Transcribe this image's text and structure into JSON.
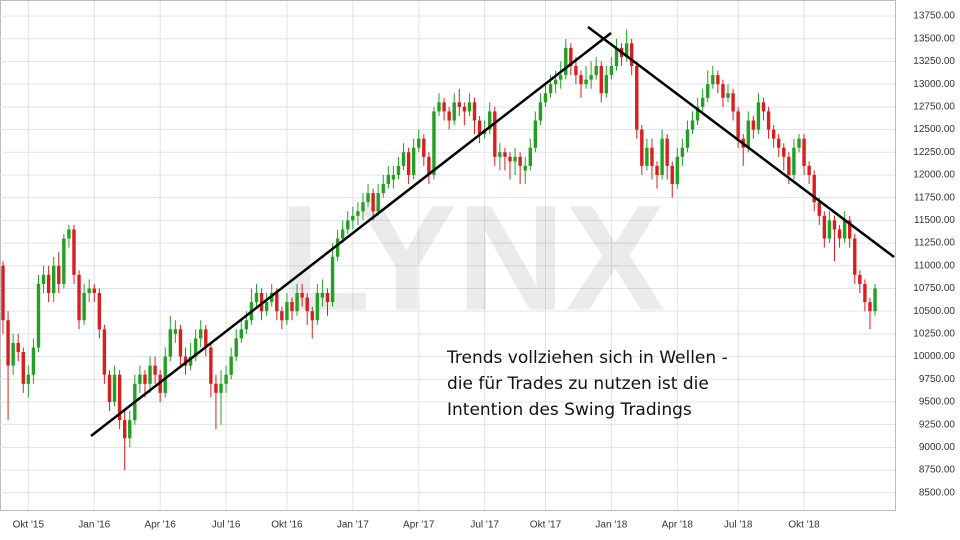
{
  "chart_data": {
    "type": "candlestick",
    "watermark": "LYNX",
    "annotation": [
      "Trends vollziehen sich in Wellen -",
      "die für Trades zu nutzen ist die",
      "Intention des Swing Tradings"
    ],
    "up_color": "#22a022",
    "down_color": "#d81e1e",
    "grid": true,
    "ylim": [
      8310,
      13850
    ],
    "yticks": [
      {
        "value": 8500,
        "label": "8500.00"
      },
      {
        "value": 8750,
        "label": "8750.00"
      },
      {
        "value": 9000,
        "label": "9000.00"
      },
      {
        "value": 9250,
        "label": "9250.00"
      },
      {
        "value": 9500,
        "label": "9500.00"
      },
      {
        "value": 9750,
        "label": "9750.00"
      },
      {
        "value": 10000,
        "label": "10000.00"
      },
      {
        "value": 10250,
        "label": "10250.00"
      },
      {
        "value": 10500,
        "label": "10500.00"
      },
      {
        "value": 10750,
        "label": "10750.00"
      },
      {
        "value": 11000,
        "label": "11000.00"
      },
      {
        "value": 11250,
        "label": "11250.00"
      },
      {
        "value": 11500,
        "label": "11500.00"
      },
      {
        "value": 11750,
        "label": "11750.00"
      },
      {
        "value": 12000,
        "label": "12000.00"
      },
      {
        "value": 12250,
        "label": "12250.00"
      },
      {
        "value": 12500,
        "label": "12500.00"
      },
      {
        "value": 12750,
        "label": "12750.00"
      },
      {
        "value": 13000,
        "label": "13000.00"
      },
      {
        "value": 13250,
        "label": "13250.00"
      },
      {
        "value": 13500,
        "label": "13500.00"
      },
      {
        "value": 13750,
        "label": "13750.00"
      }
    ],
    "categories": [
      null,
      null,
      null,
      null,
      null,
      "Okt '15",
      null,
      null,
      null,
      null,
      null,
      null,
      null,
      null,
      null,
      null,
      null,
      null,
      "Jan '16",
      null,
      null,
      null,
      null,
      null,
      null,
      null,
      null,
      null,
      null,
      null,
      null,
      "Apr '16",
      null,
      null,
      null,
      null,
      null,
      null,
      null,
      null,
      null,
      null,
      null,
      null,
      "Jul '16",
      null,
      null,
      null,
      null,
      null,
      null,
      null,
      null,
      null,
      null,
      null,
      "Okt '16",
      null,
      null,
      null,
      null,
      null,
      null,
      null,
      null,
      null,
      null,
      null,
      null,
      "Jan '17",
      null,
      null,
      null,
      null,
      null,
      null,
      null,
      null,
      null,
      null,
      null,
      null,
      "Apr '17",
      null,
      null,
      null,
      null,
      null,
      null,
      null,
      null,
      null,
      null,
      null,
      null,
      "Jul '17",
      null,
      null,
      null,
      null,
      null,
      null,
      null,
      null,
      null,
      null,
      null,
      "Okt '17",
      null,
      null,
      null,
      null,
      null,
      null,
      null,
      null,
      null,
      null,
      null,
      null,
      "Jan '18",
      null,
      null,
      null,
      null,
      null,
      null,
      null,
      null,
      null,
      null,
      null,
      null,
      "Apr '18",
      null,
      null,
      null,
      null,
      null,
      null,
      null,
      null,
      null,
      null,
      null,
      "Jul '18",
      null,
      null,
      null,
      null,
      null,
      null,
      null,
      null,
      null,
      null,
      null,
      null,
      "Okt '18",
      null,
      null,
      null,
      null,
      null,
      null,
      null,
      null,
      null,
      null,
      null,
      null,
      null,
      null
    ],
    "values": [
      [
        11000,
        11050,
        10250,
        10400
      ],
      [
        10400,
        10500,
        9300,
        9900
      ],
      [
        9900,
        10250,
        9800,
        10150
      ],
      [
        10150,
        10250,
        9950,
        10050
      ],
      [
        10050,
        10100,
        9600,
        9700
      ],
      [
        9700,
        9900,
        9550,
        9800
      ],
      [
        9800,
        10200,
        9700,
        10100
      ],
      [
        10100,
        10900,
        10050,
        10800
      ],
      [
        10800,
        11000,
        10700,
        10900
      ],
      [
        10900,
        11000,
        10600,
        10700
      ],
      [
        10700,
        11100,
        10600,
        11000
      ],
      [
        11000,
        11150,
        10700,
        10800
      ],
      [
        10800,
        11350,
        10750,
        11300
      ],
      [
        11300,
        11450,
        11200,
        11400
      ],
      [
        11400,
        11450,
        10800,
        10900
      ],
      [
        10900,
        10950,
        10300,
        10400
      ],
      [
        10400,
        10800,
        10350,
        10700
      ],
      [
        10700,
        10850,
        10600,
        10750
      ],
      [
        10750,
        10800,
        10600,
        10700
      ],
      [
        10700,
        10750,
        10200,
        10300
      ],
      [
        10300,
        10350,
        9700,
        9800
      ],
      [
        9800,
        9850,
        9400,
        9500
      ],
      [
        9500,
        9900,
        9450,
        9800
      ],
      [
        9800,
        9850,
        9200,
        9300
      ],
      [
        9300,
        9400,
        8750,
        9100
      ],
      [
        9100,
        9400,
        9000,
        9300
      ],
      [
        9300,
        9800,
        9250,
        9700
      ],
      [
        9700,
        9900,
        9600,
        9800
      ],
      [
        9800,
        9850,
        9550,
        9700
      ],
      [
        9700,
        10000,
        9600,
        9900
      ],
      [
        9900,
        10000,
        9700,
        9800
      ],
      [
        9800,
        9850,
        9500,
        9600
      ],
      [
        9600,
        10100,
        9550,
        10000
      ],
      [
        10000,
        10450,
        9950,
        10300
      ],
      [
        10250,
        10400,
        10150,
        10300
      ],
      [
        10300,
        10350,
        9900,
        10000
      ],
      [
        10000,
        10100,
        9800,
        9900
      ],
      [
        9900,
        10150,
        9850,
        10000
      ],
      [
        10000,
        10300,
        9950,
        10200
      ],
      [
        10200,
        10400,
        10100,
        10300
      ],
      [
        10300,
        10350,
        10000,
        10100
      ],
      [
        10100,
        10150,
        9550,
        9700
      ],
      [
        9700,
        9800,
        9200,
        9600
      ],
      [
        9600,
        9850,
        9250,
        9700
      ],
      [
        9700,
        9900,
        9600,
        9800
      ],
      [
        9800,
        10100,
        9750,
        10000
      ],
      [
        10000,
        10300,
        9950,
        10200
      ],
      [
        10200,
        10400,
        10150,
        10300
      ],
      [
        10300,
        10500,
        10250,
        10400
      ],
      [
        10400,
        10750,
        10350,
        10600
      ],
      [
        10600,
        10800,
        10550,
        10700
      ],
      [
        10700,
        10750,
        10400,
        10500
      ],
      [
        10500,
        10700,
        10450,
        10600
      ],
      [
        10600,
        10800,
        10550,
        10700
      ],
      [
        10700,
        10750,
        10400,
        10500
      ],
      [
        10500,
        10550,
        10300,
        10400
      ],
      [
        10400,
        10700,
        10350,
        10600
      ],
      [
        10600,
        10650,
        10400,
        10500
      ],
      [
        10500,
        10800,
        10450,
        10700
      ],
      [
        10700,
        10800,
        10550,
        10650
      ],
      [
        10650,
        10700,
        10350,
        10500
      ],
      [
        10500,
        10550,
        10200,
        10400
      ],
      [
        10400,
        10800,
        10350,
        10700
      ],
      [
        10650,
        10850,
        10550,
        10700
      ],
      [
        10700,
        10750,
        10450,
        10600
      ],
      [
        10600,
        11250,
        10550,
        11100
      ],
      [
        11100,
        11400,
        11050,
        11300
      ],
      [
        11300,
        11500,
        11250,
        11400
      ],
      [
        11400,
        11600,
        11350,
        11500
      ],
      [
        11500,
        11650,
        11400,
        11550
      ],
      [
        11550,
        11700,
        11450,
        11600
      ],
      [
        11600,
        11800,
        11500,
        11700
      ],
      [
        11700,
        11900,
        11650,
        11800
      ],
      [
        11800,
        11850,
        11500,
        11600
      ],
      [
        11600,
        11900,
        11550,
        11800
      ],
      [
        11800,
        12000,
        11750,
        11900
      ],
      [
        11900,
        12100,
        11850,
        12000
      ],
      [
        11950,
        12100,
        11850,
        12000
      ],
      [
        12000,
        12200,
        11950,
        12100
      ],
      [
        12100,
        12350,
        12050,
        12250
      ],
      [
        12250,
        12300,
        11900,
        12000
      ],
      [
        12000,
        12400,
        11950,
        12300
      ],
      [
        12300,
        12500,
        12250,
        12400
      ],
      [
        12400,
        12450,
        12100,
        12200
      ],
      [
        12200,
        12250,
        11900,
        12000
      ],
      [
        12000,
        12750,
        11950,
        12700
      ],
      [
        12700,
        12900,
        12650,
        12800
      ],
      [
        12800,
        12850,
        12600,
        12700
      ],
      [
        12700,
        12750,
        12500,
        12600
      ],
      [
        12600,
        12900,
        12550,
        12800
      ],
      [
        12800,
        12950,
        12650,
        12750
      ],
      [
        12750,
        12800,
        12550,
        12700
      ],
      [
        12700,
        12900,
        12650,
        12800
      ],
      [
        12800,
        12850,
        12450,
        12600
      ],
      [
        12600,
        12650,
        12350,
        12450
      ],
      [
        12450,
        12600,
        12400,
        12500
      ],
      [
        12500,
        12800,
        12450,
        12700
      ],
      [
        12700,
        12750,
        12100,
        12200
      ],
      [
        12200,
        12350,
        12050,
        12250
      ],
      [
        12250,
        12300,
        12050,
        12200
      ],
      [
        12200,
        12250,
        11950,
        12150
      ],
      [
        12150,
        12300,
        12000,
        12200
      ],
      [
        12200,
        12250,
        11900,
        12100
      ],
      [
        12050,
        12200,
        11900,
        12100
      ],
      [
        12100,
        12400,
        12050,
        12300
      ],
      [
        12300,
        12700,
        12250,
        12600
      ],
      [
        12600,
        12900,
        12550,
        12800
      ],
      [
        12800,
        13000,
        12750,
        12900
      ],
      [
        12900,
        13100,
        12850,
        13000
      ],
      [
        13000,
        13150,
        12900,
        13050
      ],
      [
        13050,
        13250,
        12950,
        13100
      ],
      [
        13100,
        13500,
        13050,
        13400
      ],
      [
        13400,
        13450,
        13100,
        13200
      ],
      [
        13200,
        13300,
        13000,
        13100
      ],
      [
        13100,
        13150,
        12850,
        13000
      ],
      [
        13000,
        13200,
        12950,
        13050
      ],
      [
        13050,
        13250,
        12950,
        13100
      ],
      [
        13100,
        13300,
        13050,
        13200
      ],
      [
        13200,
        13250,
        12800,
        12900
      ],
      [
        12900,
        13200,
        12850,
        13100
      ],
      [
        13100,
        13300,
        13050,
        13200
      ],
      [
        13200,
        13500,
        13150,
        13400
      ],
      [
        13400,
        13450,
        13200,
        13300
      ],
      [
        13300,
        13600,
        13250,
        13450
      ],
      [
        13450,
        13500,
        13100,
        13200
      ],
      [
        13200,
        13250,
        12400,
        12500
      ],
      [
        12500,
        12550,
        12000,
        12100
      ],
      [
        12100,
        12400,
        12050,
        12300
      ],
      [
        12300,
        12400,
        11950,
        12100
      ],
      [
        12100,
        12150,
        11850,
        12000
      ],
      [
        12000,
        12500,
        11950,
        12400
      ],
      [
        12400,
        12450,
        11950,
        12100
      ],
      [
        12100,
        12150,
        11750,
        11900
      ],
      [
        11900,
        12300,
        11850,
        12200
      ],
      [
        12200,
        12400,
        12100,
        12300
      ],
      [
        12300,
        12600,
        12250,
        12500
      ],
      [
        12500,
        12700,
        12450,
        12600
      ],
      [
        12600,
        12850,
        12550,
        12750
      ],
      [
        12750,
        12950,
        12700,
        12850
      ],
      [
        12850,
        13150,
        12800,
        13000
      ],
      [
        13000,
        13200,
        12950,
        13100
      ],
      [
        13100,
        13150,
        12900,
        13000
      ],
      [
        13000,
        13050,
        12750,
        12850
      ],
      [
        12850,
        13000,
        12800,
        12900
      ],
      [
        12900,
        12950,
        12600,
        12700
      ],
      [
        12700,
        12750,
        12300,
        12400
      ],
      [
        12400,
        12450,
        12100,
        12300
      ],
      [
        12300,
        12700,
        12250,
        12600
      ],
      [
        12600,
        12650,
        12400,
        12500
      ],
      [
        12500,
        12900,
        12450,
        12800
      ],
      [
        12800,
        12850,
        12600,
        12700
      ],
      [
        12700,
        12750,
        12400,
        12500
      ],
      [
        12500,
        12550,
        12300,
        12400
      ],
      [
        12400,
        12450,
        12200,
        12300
      ],
      [
        12300,
        12350,
        12050,
        12200
      ],
      [
        12200,
        12250,
        11900,
        12000
      ],
      [
        12000,
        12400,
        11950,
        12300
      ],
      [
        12300,
        12450,
        12250,
        12400
      ],
      [
        12400,
        12450,
        12000,
        12100
      ],
      [
        12100,
        12150,
        11900,
        12000
      ],
      [
        12000,
        12050,
        11600,
        11700
      ],
      [
        11700,
        11750,
        11450,
        11550
      ],
      [
        11550,
        11600,
        11200,
        11300
      ],
      [
        11300,
        11600,
        11250,
        11500
      ],
      [
        11500,
        11550,
        11050,
        11400
      ],
      [
        11400,
        11450,
        11200,
        11300
      ],
      [
        11300,
        11600,
        11250,
        11500
      ],
      [
        11500,
        11550,
        11200,
        11300
      ],
      [
        11300,
        11350,
        10800,
        10900
      ],
      [
        10900,
        10950,
        10700,
        10800
      ],
      [
        10800,
        10850,
        10500,
        10600
      ],
      [
        10600,
        10650,
        10300,
        10500
      ],
      [
        10500,
        10800,
        10450,
        10750
      ]
    ]
  }
}
